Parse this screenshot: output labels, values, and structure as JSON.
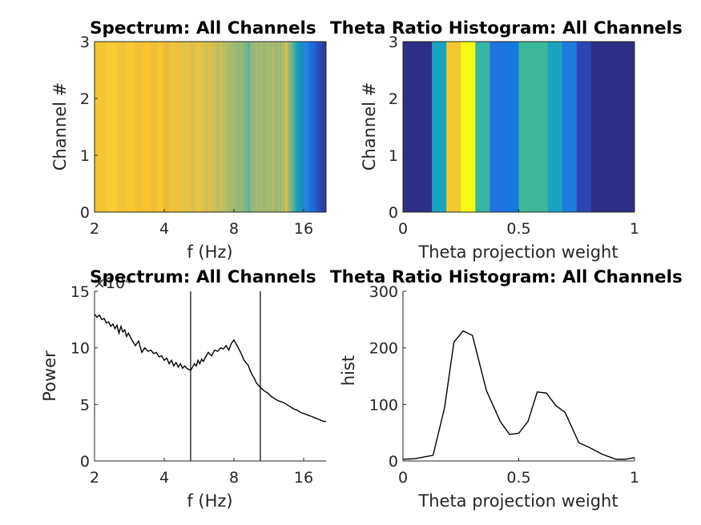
{
  "chart_data": [
    {
      "type": "heatmap",
      "title": "Spectrum: All Channels",
      "xlabel": "f (Hz)",
      "ylabel": "Channel #",
      "x_scale": "log2",
      "xlim": [
        2,
        20
      ],
      "ylim": [
        0,
        3
      ],
      "xticks": [
        "2",
        "4",
        "8",
        "16"
      ],
      "yticks": [
        "0",
        "1",
        "2",
        "3"
      ],
      "colormap": "parula",
      "column_colors": [
        "#f2c531",
        "#f9ca31",
        "#f0c436",
        "#f8c832",
        "#f3c035",
        "#fbc32f",
        "#f2bd38",
        "#f5c533",
        "#efba3b",
        "#ebc53a",
        "#f0c03a",
        "#e3c446",
        "#e8c244",
        "#dac04a",
        "#e8c440",
        "#e3c24a",
        "#d3c052",
        "#dbc14b",
        "#cfc055",
        "#bfbe5e",
        "#c9c05a",
        "#b9bd63",
        "#acbb6b",
        "#a6ba6d",
        "#a3b970",
        "#97b778",
        "#95b87a",
        "#8bb67f",
        "#7eb587",
        "#5fb097",
        "#88b781",
        "#9ab677",
        "#a5b970",
        "#99b775",
        "#a5b96e",
        "#98b776",
        "#a0b973",
        "#a8ba6e",
        "#a1b871",
        "#afbb68",
        "#a3b970",
        "#9cb773",
        "#a9ba6d",
        "#9db775",
        "#b4bc65",
        "#adbb69",
        "#e2c04a",
        "#a3b86f",
        "#8fb67c",
        "#6fb38f",
        "#54ae9c",
        "#3ba8a6",
        "#21a1b0",
        "#139ab8",
        "#1f96bc",
        "#1890c3",
        "#1f8ad0",
        "#2a85d8",
        "#287fdc",
        "#2480e0",
        "#177cdb",
        "#1b70da",
        "#1f6cdc",
        "#1f66d8",
        "#2362d4",
        "#2258c6",
        "#2555bd",
        "#264eb4",
        "#2849b0",
        "#2c43a8",
        "#2f3fa2",
        "#2d3b9c",
        "#30369b"
      ],
      "channels": [
        "0",
        "1",
        "2",
        "3"
      ]
    },
    {
      "type": "heatmap",
      "title": "Theta Ratio Histogram: All Channels",
      "xlabel": "Theta projection weight",
      "ylabel": "Channel #",
      "xlim": [
        0,
        1
      ],
      "ylim": [
        0,
        3
      ],
      "xticks": [
        "0",
        "0.5",
        "1"
      ],
      "yticks": [
        "0",
        "1",
        "2",
        "3"
      ],
      "colormap": "parula",
      "column_colors": [
        "#2f2f87",
        "#2f2f87",
        "#1aa3c1",
        "#f4c830",
        "#f9fa14",
        "#39b5a5",
        "#1f73dd",
        "#1478e0",
        "#3bb89a",
        "#3bb89a",
        "#1aa3c1",
        "#1b7de0",
        "#2b45b4",
        "#2f2f87",
        "#2f2f87",
        "#2f2f87"
      ]
    },
    {
      "type": "line",
      "title": "Spectrum: All Channels",
      "xlabel": "f (Hz)",
      "ylabel": "Power",
      "x_scale": "log2",
      "xlim": [
        2,
        20
      ],
      "ylim": [
        0,
        150000
      ],
      "y_exponent": "×10⁴",
      "xticks": [
        "2",
        "4",
        "8",
        "16"
      ],
      "yticks": [
        "0",
        "5",
        "10",
        "15"
      ],
      "vlines": [
        5.2,
        10.4
      ],
      "series": [
        {
          "x": [
            2.0,
            2.05,
            2.1,
            2.15,
            2.2,
            2.25,
            2.3,
            2.35,
            2.4,
            2.45,
            2.5,
            2.55,
            2.6,
            2.65,
            2.7,
            2.75,
            2.8,
            2.9,
            3.0,
            3.1,
            3.2,
            3.3,
            3.4,
            3.5,
            3.6,
            3.7,
            3.8,
            3.9,
            4.0,
            4.1,
            4.2,
            4.3,
            4.4,
            4.5,
            4.6,
            4.7,
            4.8,
            4.9,
            5.0,
            5.1,
            5.2,
            5.3,
            5.4,
            5.5,
            5.6,
            5.7,
            5.8,
            5.9,
            6.0,
            6.2,
            6.4,
            6.6,
            6.8,
            7.0,
            7.2,
            7.4,
            7.6,
            7.8,
            8.0,
            8.2,
            8.4,
            8.6,
            8.8,
            9.0,
            9.2,
            9.4,
            9.6,
            9.8,
            10.0,
            10.4,
            10.8,
            11.2,
            11.6,
            12.0,
            12.5,
            13.0,
            13.5,
            14.0,
            14.5,
            15.0,
            15.5,
            16.0,
            16.5,
            17.0,
            17.5,
            18.0,
            18.5,
            19.0,
            19.5,
            20.0
          ],
          "y": [
            130000,
            127000,
            129000,
            125000,
            126000,
            122000,
            123000,
            119000,
            121000,
            117000,
            120000,
            113000,
            119000,
            114000,
            116000,
            110000,
            113000,
            107000,
            102000,
            106000,
            96000,
            100000,
            97000,
            98000,
            95000,
            96000,
            92000,
            93000,
            89000,
            91000,
            86000,
            89000,
            84000,
            87000,
            83000,
            86000,
            82000,
            84000,
            82000,
            81000,
            80000,
            83000,
            86000,
            84000,
            89000,
            86000,
            90000,
            88000,
            91000,
            96000,
            93000,
            98000,
            97000,
            100000,
            99000,
            102000,
            98000,
            104000,
            107000,
            103000,
            99000,
            95000,
            90000,
            87000,
            85000,
            80000,
            76000,
            73000,
            69000,
            65000,
            62000,
            60000,
            57000,
            55000,
            53000,
            52000,
            50000,
            48000,
            46000,
            45000,
            43000,
            42000,
            41000,
            40000,
            39000,
            38000,
            37000,
            36000,
            35000,
            35000
          ]
        }
      ]
    },
    {
      "type": "line",
      "title": "Theta Ratio Histogram: All Channels",
      "xlabel": "Theta projection weight",
      "ylabel": "hist",
      "xlim": [
        0,
        1
      ],
      "ylim": [
        0,
        300
      ],
      "xticks": [
        "0",
        "0.5",
        "1"
      ],
      "yticks": [
        "0",
        "100",
        "200",
        "300"
      ],
      "series": [
        {
          "x": [
            0,
            0.05,
            0.13,
            0.18,
            0.22,
            0.26,
            0.3,
            0.36,
            0.42,
            0.46,
            0.5,
            0.54,
            0.58,
            0.62,
            0.66,
            0.7,
            0.76,
            0.8,
            0.86,
            0.92,
            0.96,
            1.0
          ],
          "y": [
            3,
            4,
            10,
            95,
            210,
            230,
            222,
            125,
            70,
            47,
            49,
            70,
            122,
            120,
            98,
            86,
            32,
            25,
            12,
            3,
            3,
            6
          ]
        }
      ]
    }
  ]
}
